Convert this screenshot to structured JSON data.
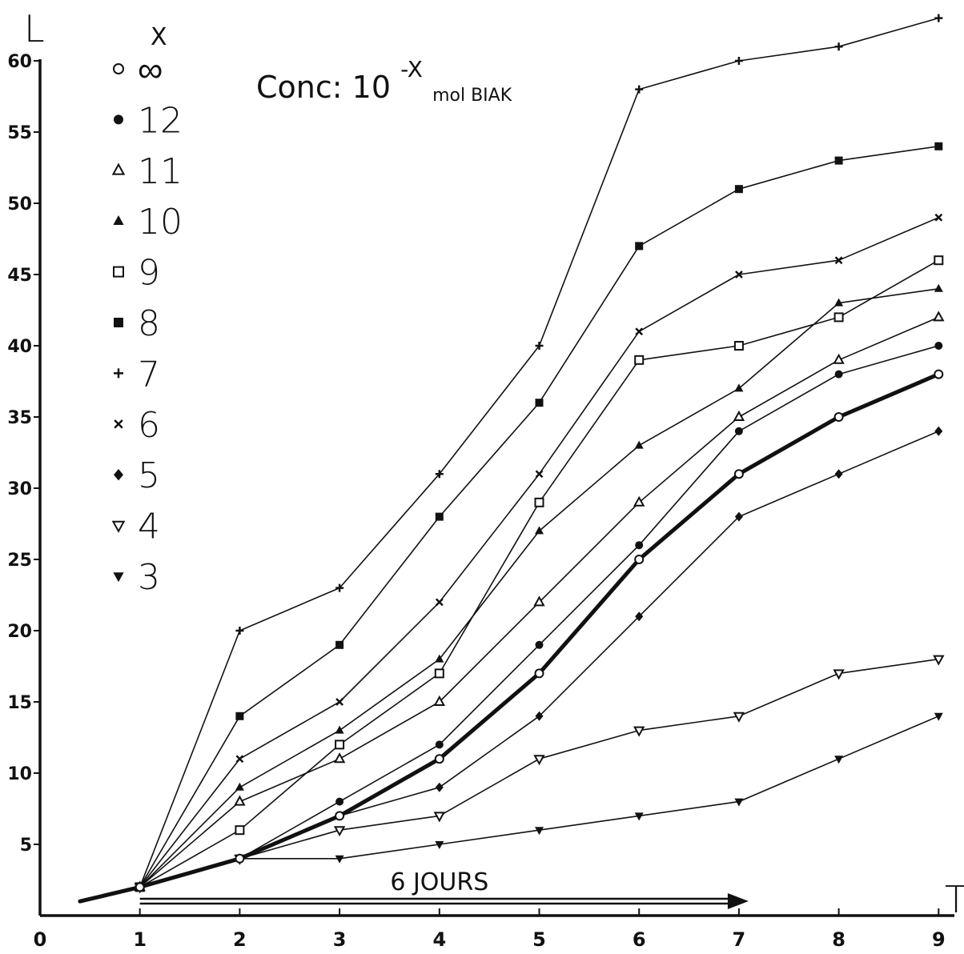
{
  "chart_data": {
    "type": "line",
    "title_main": "Conc: 10",
    "title_sup": "-X",
    "title_sub": "mol BIAK",
    "ylabel": "L",
    "xlabel": "T",
    "legend_header": "X",
    "xlim": [
      0,
      9
    ],
    "ylim": [
      0,
      60
    ],
    "x_ticks": [
      "0",
      "1",
      "2",
      "3",
      "4",
      "5",
      "6",
      "7",
      "8",
      "9"
    ],
    "y_ticks": [
      "5",
      "10",
      "15",
      "20",
      "25",
      "30",
      "35",
      "40",
      "45",
      "50",
      "55",
      "60"
    ],
    "annotation": {
      "text": "6 JOURS",
      "from_x": 1,
      "to_x": 7
    },
    "origin_segment": {
      "x": [
        0.4,
        1
      ],
      "y": [
        1,
        2
      ]
    },
    "series": [
      {
        "name": "∞",
        "marker": "circle-open",
        "bold": true,
        "x": [
          1,
          2,
          3,
          4,
          5,
          6,
          7,
          8,
          9
        ],
        "y": [
          2,
          4,
          7,
          11,
          17,
          25,
          31,
          35,
          38
        ]
      },
      {
        "name": "12",
        "marker": "circle-filled",
        "x": [
          1,
          2,
          3,
          4,
          5,
          6,
          7,
          8,
          9
        ],
        "y": [
          2,
          4,
          8,
          12,
          19,
          26,
          34,
          38,
          40
        ]
      },
      {
        "name": "11",
        "marker": "triangle-open",
        "x": [
          1,
          2,
          3,
          4,
          5,
          6,
          7,
          8,
          9
        ],
        "y": [
          2,
          8,
          11,
          15,
          22,
          29,
          35,
          39,
          42
        ]
      },
      {
        "name": "10",
        "marker": "triangle-filled",
        "x": [
          1,
          2,
          3,
          4,
          5,
          6,
          7,
          8,
          9
        ],
        "y": [
          2,
          9,
          13,
          18,
          27,
          33,
          37,
          43,
          44
        ]
      },
      {
        "name": "9",
        "marker": "square-open",
        "x": [
          1,
          2,
          3,
          4,
          5,
          6,
          7,
          8,
          9
        ],
        "y": [
          2,
          6,
          12,
          17,
          29,
          39,
          40,
          42,
          46
        ]
      },
      {
        "name": "8",
        "marker": "square-filled",
        "x": [
          1,
          2,
          3,
          4,
          5,
          6,
          7,
          8,
          9
        ],
        "y": [
          2,
          14,
          19,
          28,
          36,
          47,
          51,
          53,
          54
        ]
      },
      {
        "name": "7",
        "marker": "plus",
        "x": [
          1,
          2,
          3,
          4,
          5,
          6,
          7,
          8,
          9
        ],
        "y": [
          2,
          20,
          23,
          31,
          40,
          58,
          60,
          61,
          63
        ]
      },
      {
        "name": "6",
        "marker": "cross",
        "x": [
          1,
          2,
          3,
          4,
          5,
          6,
          7,
          8,
          9
        ],
        "y": [
          2,
          11,
          15,
          22,
          31,
          41,
          45,
          46,
          49
        ]
      },
      {
        "name": "5",
        "marker": "diamond-filled",
        "x": [
          1,
          2,
          3,
          4,
          5,
          6,
          7,
          8,
          9
        ],
        "y": [
          2,
          4,
          7,
          9,
          14,
          21,
          28,
          31,
          34
        ]
      },
      {
        "name": "4",
        "marker": "triangle-down-open",
        "x": [
          1,
          2,
          3,
          4,
          5,
          6,
          7,
          8,
          9
        ],
        "y": [
          2,
          4,
          6,
          7,
          11,
          13,
          14,
          17,
          18
        ]
      },
      {
        "name": "3",
        "marker": "triangle-down-filled",
        "x": [
          1,
          2,
          3,
          4,
          5,
          6,
          7,
          8,
          9
        ],
        "y": [
          2,
          4,
          4,
          5,
          6,
          7,
          8,
          11,
          14
        ]
      }
    ]
  }
}
